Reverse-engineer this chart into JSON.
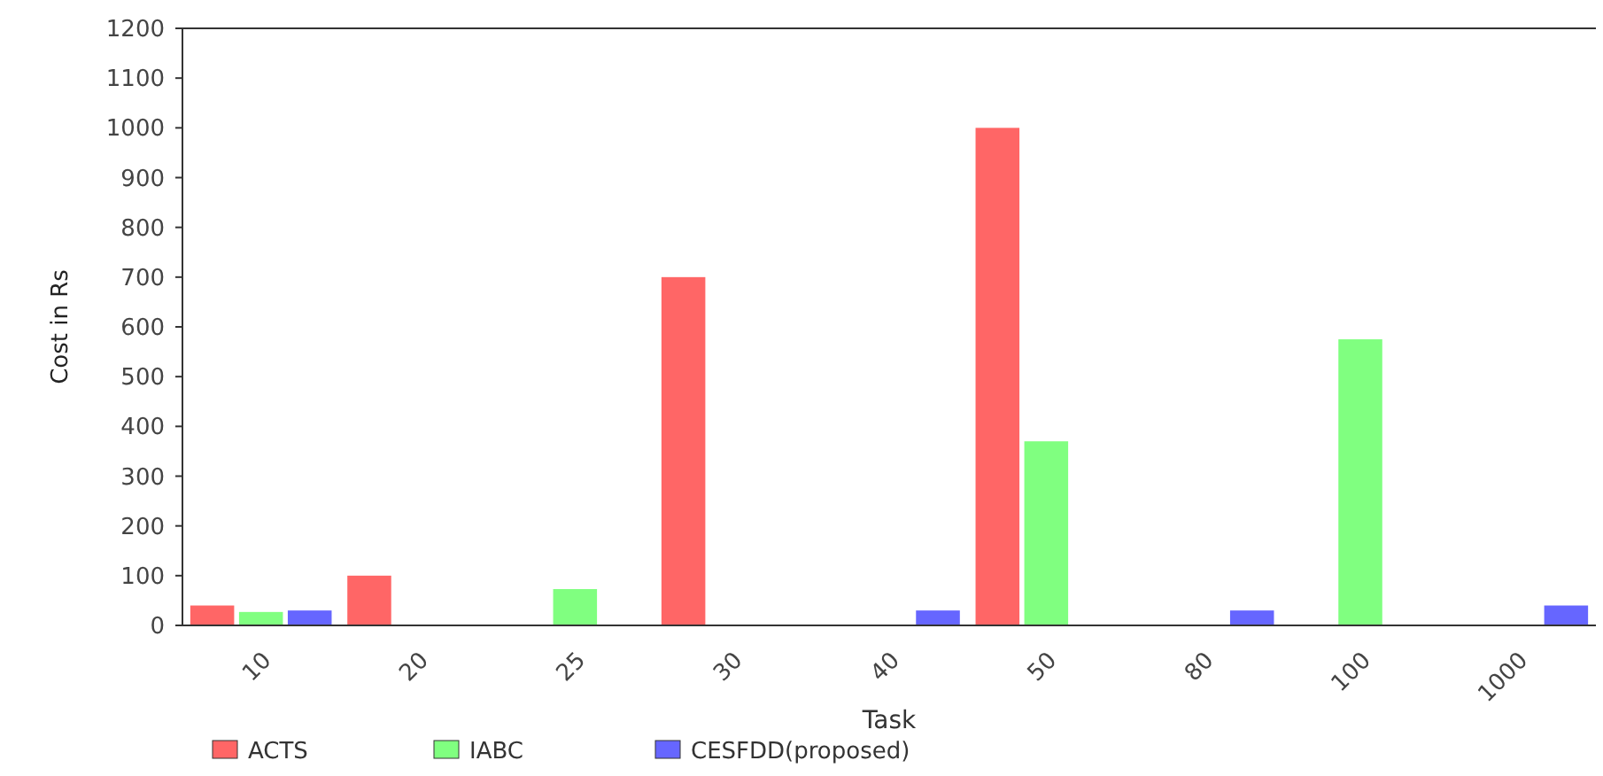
{
  "chart_data": {
    "type": "bar",
    "xlabel": "Task",
    "ylabel": "Cost in Rs",
    "categories": [
      "10",
      "20",
      "25",
      "30",
      "40",
      "50",
      "80",
      "100",
      "1000"
    ],
    "series": [
      {
        "name": "ACTS",
        "color": "#ff6666",
        "values": [
          40,
          100,
          null,
          700,
          null,
          1000,
          null,
          null,
          null
        ]
      },
      {
        "name": "IABC",
        "color": "#80ff80",
        "values": [
          27,
          null,
          73,
          null,
          null,
          370,
          null,
          575,
          null
        ]
      },
      {
        "name": "CESFDD(proposed)",
        "color": "#6666ff",
        "values": [
          30,
          null,
          null,
          null,
          30,
          null,
          30,
          null,
          40
        ]
      }
    ],
    "ylim": [
      0,
      1200
    ],
    "yticks": [
      0,
      100,
      200,
      300,
      400,
      500,
      600,
      700,
      800,
      900,
      1000,
      1100,
      1200
    ],
    "grid": false,
    "legend": "bottom left"
  }
}
